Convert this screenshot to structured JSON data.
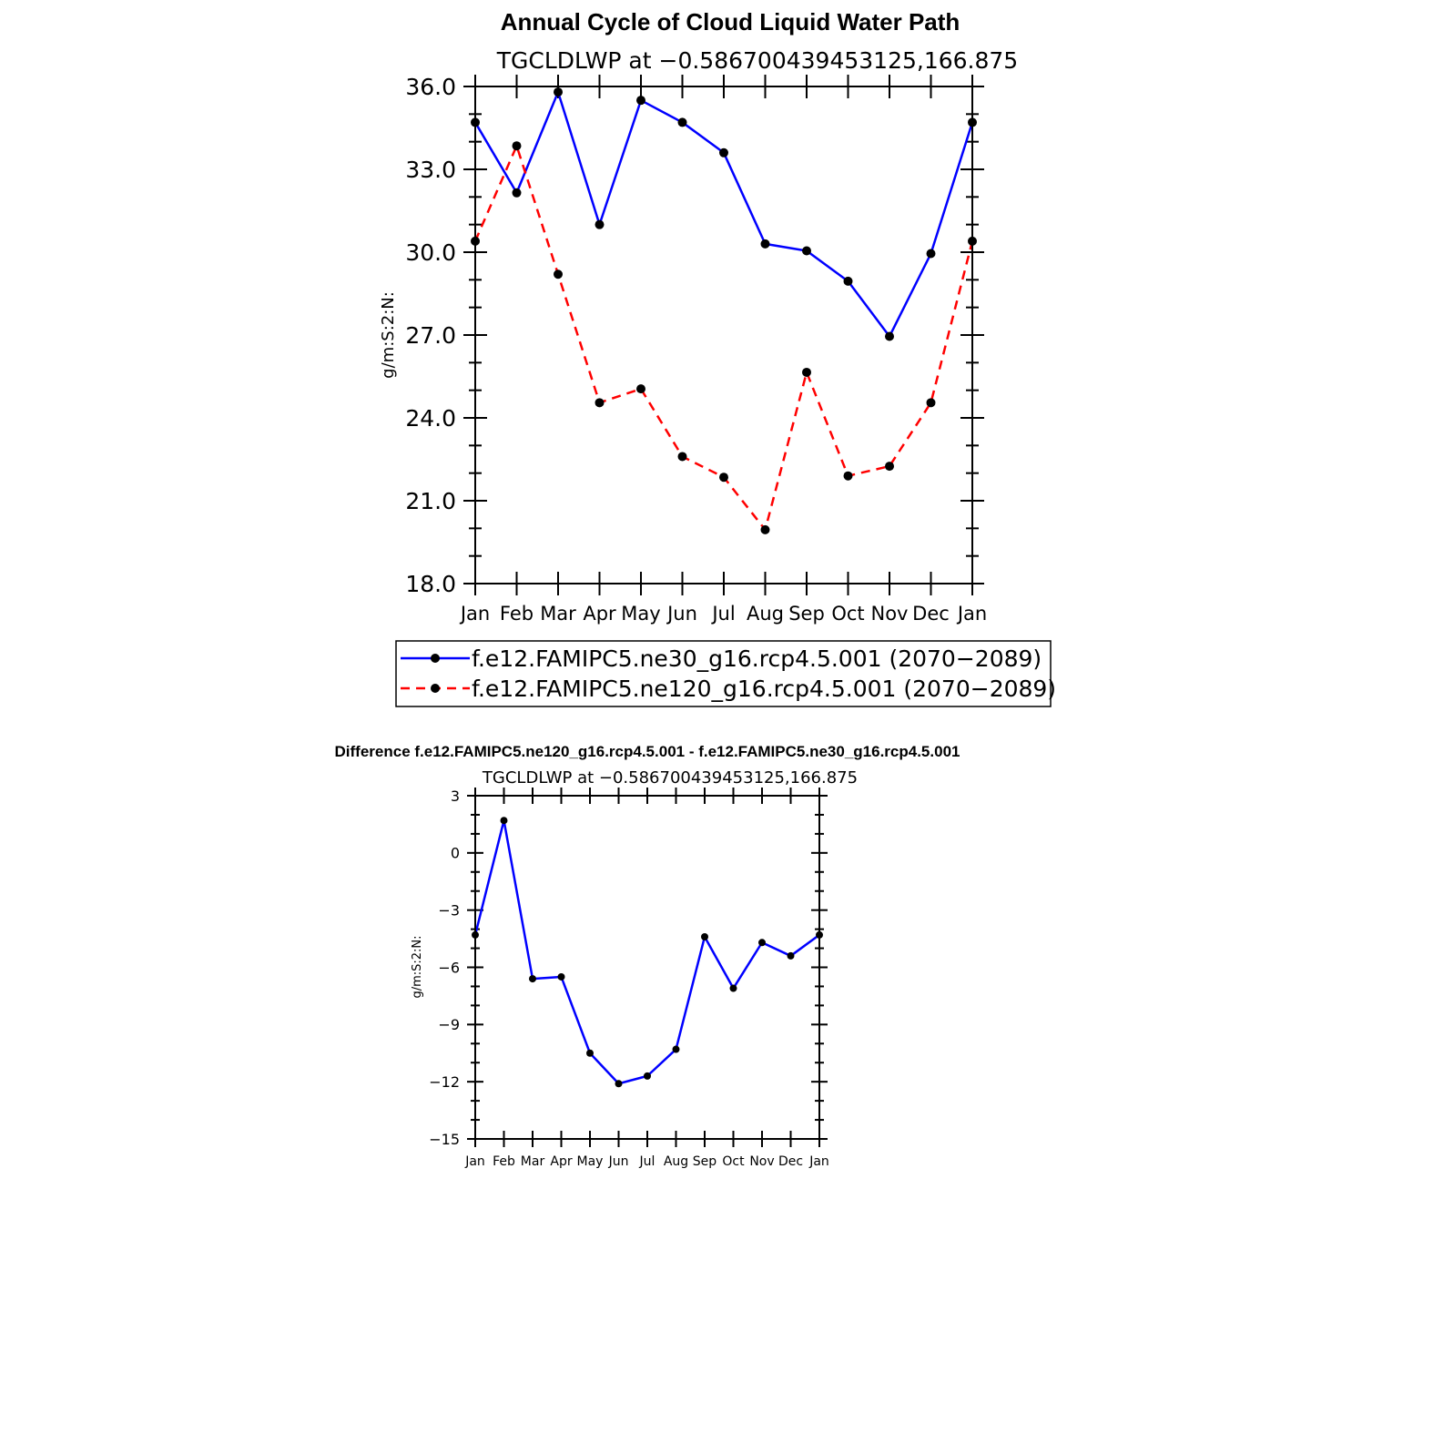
{
  "chart_data": [
    {
      "type": "line",
      "title": "Annual Cycle of Cloud Liquid Water Path",
      "subtitle": "TGCLDLWP  at  −0.586700439453125,166.875",
      "xlabel": "",
      "ylabel": "g/m:S:2:N:",
      "categories": [
        "Jan",
        "Feb",
        "Mar",
        "Apr",
        "May",
        "Jun",
        "Jul",
        "Aug",
        "Sep",
        "Oct",
        "Nov",
        "Dec",
        "Jan"
      ],
      "ylim": [
        18.0,
        36.0
      ],
      "yticks": [
        "18.0",
        "21.0",
        "24.0",
        "27.0",
        "30.0",
        "33.0",
        "36.0"
      ],
      "legend_position": "bottom",
      "grid": false,
      "series": [
        {
          "name": "f.e12.FAMIPC5.ne30_g16.rcp4.5.001  (2070−2089)",
          "color": "#0000ff",
          "dash": "solid",
          "values": [
            34.7,
            32.15,
            35.8,
            31.0,
            35.5,
            34.7,
            33.6,
            30.3,
            30.05,
            28.95,
            26.95,
            29.95,
            34.7
          ]
        },
        {
          "name": "f.e12.FAMIPC5.ne120_g16.rcp4.5.001  (2070−2089)",
          "color": "#ff0000",
          "dash": "dashed",
          "values": [
            30.4,
            33.85,
            29.2,
            24.55,
            25.05,
            22.6,
            21.85,
            19.95,
            25.65,
            21.9,
            22.25,
            24.55,
            30.4
          ]
        }
      ]
    },
    {
      "type": "line",
      "title": "Difference f.e12.FAMIPC5.ne120_g16.rcp4.5.001 - f.e12.FAMIPC5.ne30_g16.rcp4.5.001",
      "subtitle": "TGCLDLWP  at  −0.586700439453125,166.875",
      "xlabel": "",
      "ylabel": "g/m:S:2:N:",
      "categories": [
        "Jan",
        "Feb",
        "Mar",
        "Apr",
        "May",
        "Jun",
        "Jul",
        "Aug",
        "Sep",
        "Oct",
        "Nov",
        "Dec",
        "Jan"
      ],
      "ylim": [
        -15,
        3
      ],
      "yticks": [
        "−15",
        "−12",
        "−9",
        "−6",
        "−3",
        "0",
        "3"
      ],
      "grid": false,
      "series": [
        {
          "color": "#0000ff",
          "dash": "solid",
          "values": [
            -4.3,
            1.7,
            -6.6,
            -6.5,
            -10.5,
            -12.1,
            -11.7,
            -10.3,
            -4.4,
            -7.1,
            -4.7,
            -5.4,
            -4.3
          ]
        }
      ]
    }
  ]
}
